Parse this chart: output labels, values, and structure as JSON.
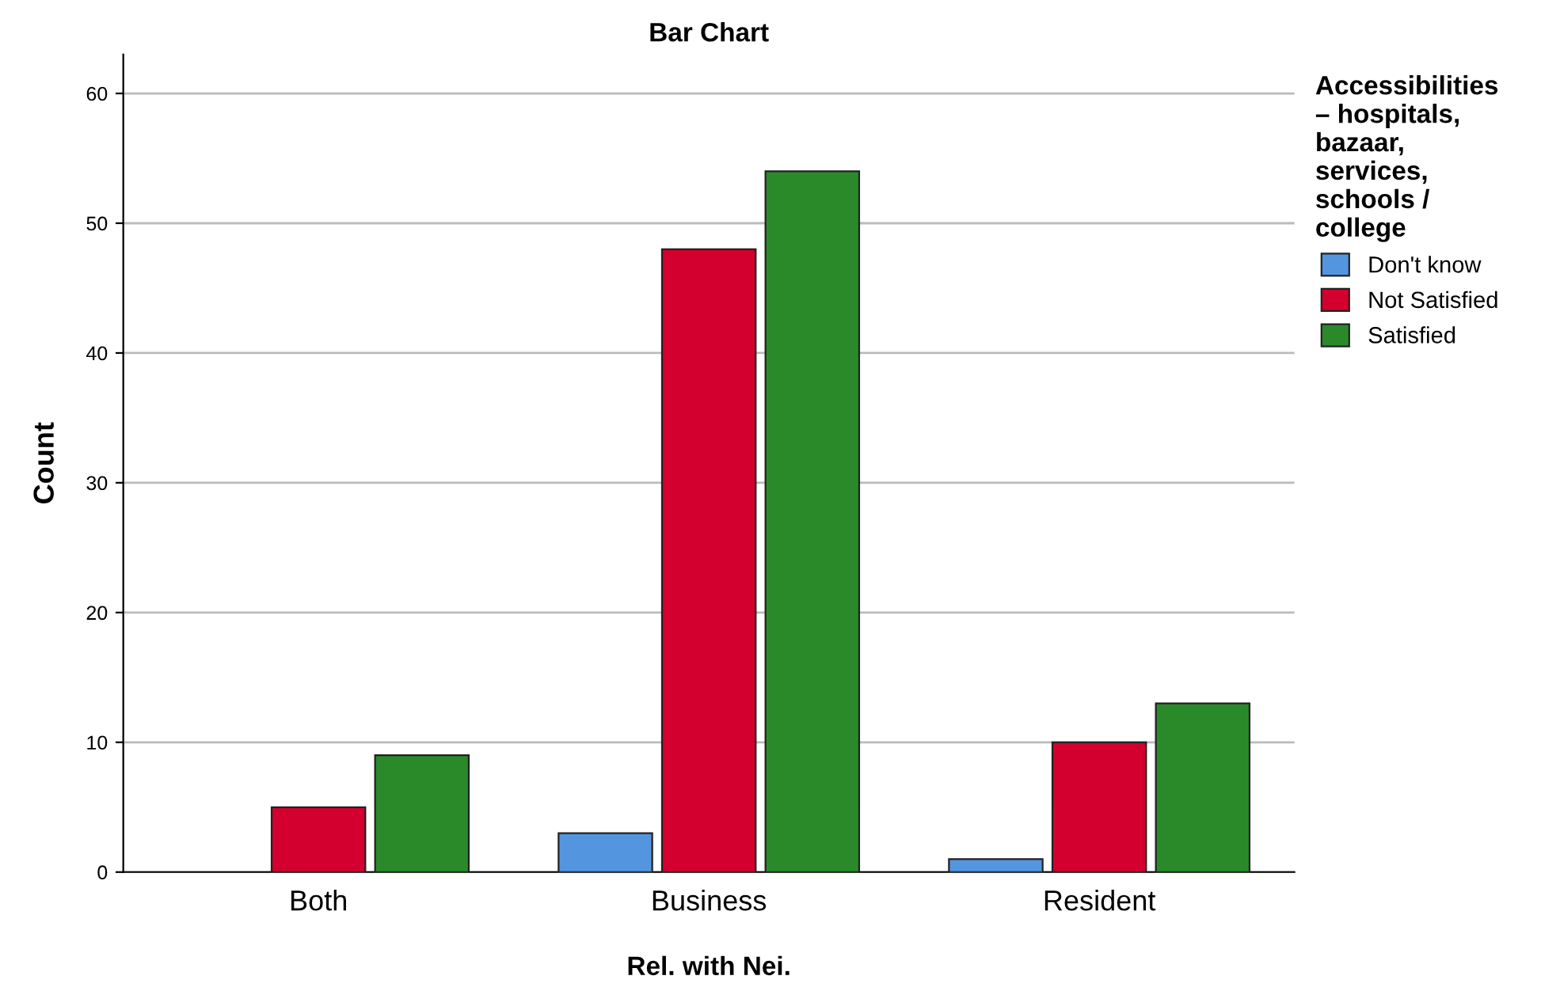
{
  "chart_data": {
    "type": "bar",
    "title": "Bar Chart",
    "xlabel": "Rel. with Nei.",
    "ylabel": "Count",
    "legend_title": "Accessibilities\n– hospitals,\nbazaar,\nservices,\nschools /\ncollege",
    "categories": [
      "Both",
      "Business",
      "Resident"
    ],
    "series": [
      {
        "name": "Don't know",
        "color": "#5495e0",
        "values": [
          null,
          3,
          1
        ]
      },
      {
        "name": "Not Satisfied",
        "color": "#d3002f",
        "values": [
          5,
          48,
          10
        ]
      },
      {
        "name": "Satisfied",
        "color": "#2a8a2a",
        "values": [
          9,
          54,
          13
        ]
      }
    ],
    "ylim": [
      0,
      63
    ],
    "yticks": [
      0,
      10,
      20,
      30,
      40,
      50,
      60
    ],
    "grid": "y",
    "legend": "top right"
  }
}
